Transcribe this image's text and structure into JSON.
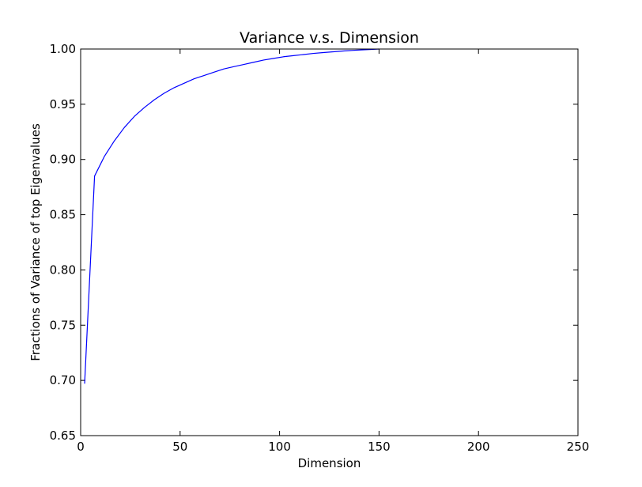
{
  "chart_data": {
    "type": "line",
    "title": "Variance v.s. Dimension",
    "xlabel": "Dimension",
    "ylabel": "Fractions of Variance of top Eigenvalues",
    "xlim": [
      0,
      250
    ],
    "ylim": [
      0.65,
      1.0
    ],
    "xticks": [
      0,
      50,
      100,
      150,
      200,
      250
    ],
    "xtick_labels": [
      "0",
      "50",
      "100",
      "150",
      "200",
      "250"
    ],
    "yticks": [
      0.65,
      0.7,
      0.75,
      0.8,
      0.85,
      0.9,
      0.95,
      1.0
    ],
    "ytick_labels": [
      "0.65",
      "0.70",
      "0.75",
      "0.80",
      "0.85",
      "0.90",
      "0.95",
      "1.00"
    ],
    "grid": false,
    "series": [
      {
        "color": "#0000ff",
        "x": [
          2,
          7,
          12,
          17,
          22,
          27,
          32,
          37,
          42,
          47,
          52,
          57,
          62,
          67,
          72,
          77,
          82,
          87,
          92,
          97,
          102,
          107,
          112,
          117,
          122,
          127,
          132,
          137,
          142,
          147,
          150
        ],
        "y": [
          0.697,
          0.885,
          0.903,
          0.917,
          0.929,
          0.939,
          0.947,
          0.954,
          0.96,
          0.965,
          0.969,
          0.973,
          0.976,
          0.979,
          0.982,
          0.984,
          0.986,
          0.988,
          0.99,
          0.9915,
          0.993,
          0.994,
          0.995,
          0.996,
          0.9968,
          0.9975,
          0.9982,
          0.9988,
          0.9993,
          0.9997,
          1.0
        ]
      }
    ]
  }
}
